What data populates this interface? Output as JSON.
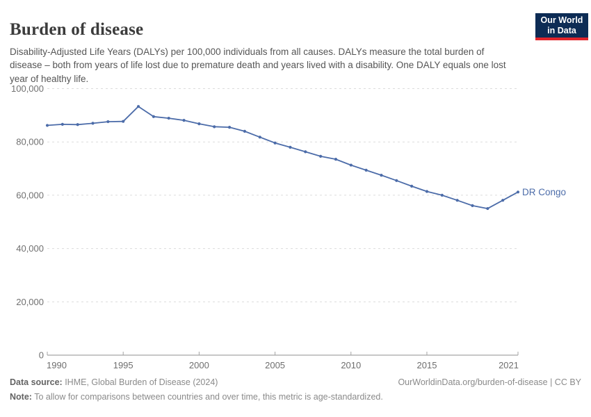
{
  "header": {
    "title": "Burden of disease",
    "subtitle": "Disability-Adjusted Life Years (DALYs) per 100,000 individuals from all causes. DALYs measure the total burden of disease – both from years of life lost due to premature death and years lived with a disability. One DALY equals one lost year of healthy life."
  },
  "logo": {
    "line1": "Our World",
    "line2": "in Data",
    "bg_color": "#0d2c55",
    "accent_color": "#e0242b"
  },
  "footer": {
    "datasource_label": "Data source:",
    "datasource_text": " IHME, Global Burden of Disease (2024)",
    "attribution": "OurWorldinData.org/burden-of-disease | CC BY",
    "note_label": "Note:",
    "note_text": " To allow for comparisons between countries and over time, this metric is age-standardized."
  },
  "chart_data": {
    "type": "line",
    "title": "Burden of disease",
    "xlabel": "",
    "ylabel": "DALYs per 100,000 individuals",
    "xlim": [
      1990,
      2021
    ],
    "ylim": [
      0,
      100000
    ],
    "grid": "horizontal dashed",
    "legend_position": "end-of-line label",
    "x": [
      1990,
      1991,
      1992,
      1993,
      1994,
      1995,
      1996,
      1997,
      1998,
      1999,
      2000,
      2001,
      2002,
      2003,
      2004,
      2005,
      2006,
      2007,
      2008,
      2009,
      2010,
      2011,
      2012,
      2013,
      2014,
      2015,
      2016,
      2017,
      2018,
      2019,
      2020,
      2021
    ],
    "series": [
      {
        "name": "DR Congo",
        "color": "#4C6CA9",
        "values": [
          86200,
          86600,
          86500,
          87000,
          87600,
          87700,
          93300,
          89500,
          88900,
          88100,
          86800,
          85700,
          85500,
          84000,
          81800,
          79600,
          78000,
          76300,
          74600,
          73500,
          71300,
          69400,
          67500,
          65500,
          63400,
          61400,
          60000,
          58100,
          56100,
          55000,
          58100,
          61200
        ]
      }
    ],
    "yticks": [
      0,
      20000,
      40000,
      60000,
      80000,
      100000
    ],
    "ytick_labels": [
      "0",
      "20,000",
      "40,000",
      "60,000",
      "80,000",
      "100,000"
    ],
    "xticks": [
      1990,
      1995,
      2000,
      2005,
      2010,
      2015,
      2021
    ],
    "colors": {
      "gridline": "#dbdbdb",
      "axis_line": "#8f8f8f",
      "tick_mark": "#a3a3a3"
    }
  }
}
